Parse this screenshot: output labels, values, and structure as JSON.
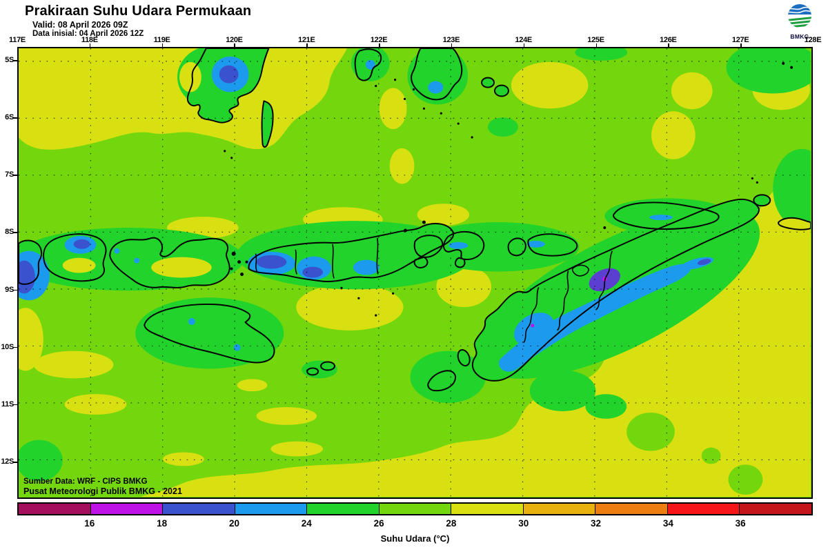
{
  "header": {
    "title": "Prakiraan Suhu Udara Permukaan",
    "valid": "Valid: 08 April 2026 09Z",
    "init": "Data inisial: 04 April 2026 12Z",
    "logo_text": "BMKG"
  },
  "map": {
    "lon_labels": [
      "117E",
      "118E",
      "119E",
      "120E",
      "121E",
      "122E",
      "123E",
      "124E",
      "125E",
      "126E",
      "127E",
      "128E"
    ],
    "lat_labels": [
      "5S",
      "6S",
      "7S",
      "8S",
      "9S",
      "10S",
      "11S",
      "12S"
    ],
    "source_line1": "Sumber Data: WRF - CIPS BMKG",
    "source_line2": "Pusat Meteorologi Publik BMKG - 2021"
  },
  "legend": {
    "title": "Suhu Udara (°C)",
    "tick_labels": [
      "16",
      "18",
      "20",
      "24",
      "26",
      "28",
      "30",
      "32",
      "34",
      "36"
    ],
    "segments": [
      {
        "label": "<16",
        "color": "#a50d5d"
      },
      {
        "label": "16-18",
        "color": "#bf13e6"
      },
      {
        "label": "18-20",
        "color": "#3a52ce"
      },
      {
        "label": "20-24",
        "color": "#1c9bee"
      },
      {
        "label": "24-26",
        "color": "#22d32c"
      },
      {
        "label": "26-28",
        "color": "#74d60d"
      },
      {
        "label": "28-30",
        "color": "#d9e011"
      },
      {
        "label": "30-32",
        "color": "#e8b10e"
      },
      {
        "label": "32-34",
        "color": "#ee7d10"
      },
      {
        "label": "34-36",
        "color": "#f6161a"
      },
      {
        "label": ">36",
        "color": "#c3151a"
      }
    ]
  },
  "field_colors": {
    "base_26_28": "#74d60d",
    "warm_28_30": "#d9e011",
    "cool_24_26": "#22d32c",
    "cold_20_24": "#1c9bee",
    "colder_18_20": "#3a52ce",
    "coldest_17": "#5b3fd0",
    "spot_16_18": "#bf13e6"
  }
}
